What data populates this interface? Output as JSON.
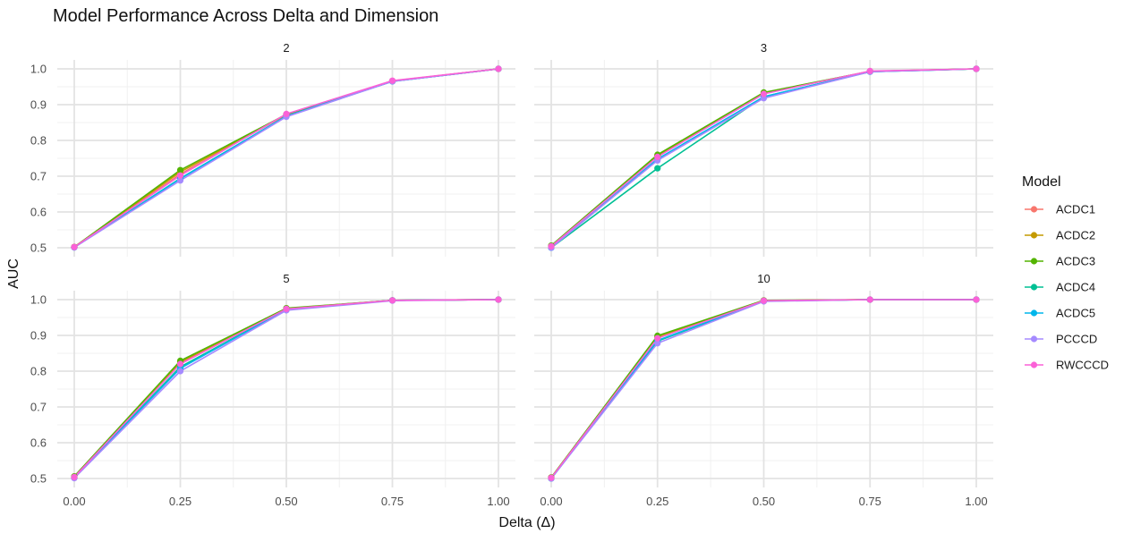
{
  "chart_data": {
    "type": "line",
    "title": "Model Performance Across Delta and Dimension",
    "xlabel": "Delta (Δ)",
    "ylabel": "AUC",
    "x": [
      0.0,
      0.25,
      0.5,
      0.75,
      1.0
    ],
    "x_tick_labels": [
      "0.00",
      "0.25",
      "0.50",
      "0.75",
      "1.00"
    ],
    "xlim": [
      0.0,
      1.0
    ],
    "ylim": [
      0.5,
      1.0
    ],
    "y_ticks": [
      0.5,
      0.6,
      0.7,
      0.8,
      0.9,
      1.0
    ],
    "y_tick_labels": [
      "0.5",
      "0.6",
      "0.7",
      "0.8",
      "0.9",
      "1.0"
    ],
    "grid": true,
    "legend": {
      "title": "Model",
      "placement": "right",
      "entries": [
        {
          "name": "ACDC1",
          "color": "#F8766D"
        },
        {
          "name": "ACDC2",
          "color": "#C49A00"
        },
        {
          "name": "ACDC3",
          "color": "#53B400"
        },
        {
          "name": "ACDC4",
          "color": "#00C094"
        },
        {
          "name": "ACDC5",
          "color": "#00B6EB"
        },
        {
          "name": "PCCCD",
          "color": "#A58AFF"
        },
        {
          "name": "RWCCCD",
          "color": "#FB61D7"
        }
      ]
    },
    "panels": [
      {
        "facet": "2",
        "series": [
          {
            "name": "ACDC1",
            "values": [
              0.502,
              0.706,
              0.872,
              0.966,
              1.0
            ]
          },
          {
            "name": "ACDC2",
            "values": [
              0.502,
              0.712,
              0.872,
              0.966,
              1.0
            ]
          },
          {
            "name": "ACDC3",
            "values": [
              0.502,
              0.717,
              0.873,
              0.966,
              1.0
            ]
          },
          {
            "name": "ACDC4",
            "values": [
              0.501,
              0.694,
              0.868,
              0.965,
              1.0
            ]
          },
          {
            "name": "ACDC5",
            "values": [
              0.501,
              0.693,
              0.868,
              0.965,
              1.0
            ]
          },
          {
            "name": "PCCCD",
            "values": [
              0.501,
              0.688,
              0.866,
              0.965,
              1.0
            ]
          },
          {
            "name": "RWCCCD",
            "values": [
              0.502,
              0.702,
              0.874,
              0.967,
              1.0
            ]
          }
        ]
      },
      {
        "facet": "3",
        "series": [
          {
            "name": "ACDC1",
            "values": [
              0.504,
              0.756,
              0.932,
              0.993,
              1.0
            ]
          },
          {
            "name": "ACDC2",
            "values": [
              0.505,
              0.758,
              0.933,
              0.993,
              1.0
            ]
          },
          {
            "name": "ACDC3",
            "values": [
              0.506,
              0.76,
              0.934,
              0.993,
              1.0
            ]
          },
          {
            "name": "ACDC4",
            "values": [
              0.5,
              0.722,
              0.922,
              0.992,
              1.0
            ]
          },
          {
            "name": "ACDC5",
            "values": [
              0.5,
              0.748,
              0.922,
              0.992,
              1.0
            ]
          },
          {
            "name": "PCCCD",
            "values": [
              0.5,
              0.744,
              0.918,
              0.992,
              1.0
            ]
          },
          {
            "name": "RWCCCD",
            "values": [
              0.504,
              0.754,
              0.93,
              0.994,
              1.0
            ]
          }
        ]
      },
      {
        "facet": "5",
        "series": [
          {
            "name": "ACDC1",
            "values": [
              0.505,
              0.824,
              0.975,
              0.998,
              1.0
            ]
          },
          {
            "name": "ACDC2",
            "values": [
              0.505,
              0.826,
              0.975,
              0.998,
              1.0
            ]
          },
          {
            "name": "ACDC3",
            "values": [
              0.506,
              0.829,
              0.976,
              0.998,
              1.0
            ]
          },
          {
            "name": "ACDC4",
            "values": [
              0.502,
              0.812,
              0.972,
              0.998,
              1.0
            ]
          },
          {
            "name": "ACDC5",
            "values": [
              0.502,
              0.808,
              0.972,
              0.998,
              1.0
            ]
          },
          {
            "name": "PCCCD",
            "values": [
              0.501,
              0.8,
              0.97,
              0.997,
              1.0
            ]
          },
          {
            "name": "RWCCCD",
            "values": [
              0.504,
              0.82,
              0.974,
              0.998,
              1.0
            ]
          }
        ]
      },
      {
        "facet": "10",
        "series": [
          {
            "name": "ACDC1",
            "values": [
              0.502,
              0.894,
              0.997,
              1.0,
              1.0
            ]
          },
          {
            "name": "ACDC2",
            "values": [
              0.503,
              0.896,
              0.997,
              1.0,
              1.0
            ]
          },
          {
            "name": "ACDC3",
            "values": [
              0.503,
              0.899,
              0.998,
              1.0,
              1.0
            ]
          },
          {
            "name": "ACDC4",
            "values": [
              0.5,
              0.884,
              0.996,
              1.0,
              1.0
            ]
          },
          {
            "name": "ACDC5",
            "values": [
              0.5,
              0.886,
              0.996,
              1.0,
              1.0
            ]
          },
          {
            "name": "PCCCD",
            "values": [
              0.5,
              0.878,
              0.995,
              1.0,
              1.0
            ]
          },
          {
            "name": "RWCCCD",
            "values": [
              0.502,
              0.892,
              0.997,
              1.0,
              1.0
            ]
          }
        ]
      }
    ]
  }
}
